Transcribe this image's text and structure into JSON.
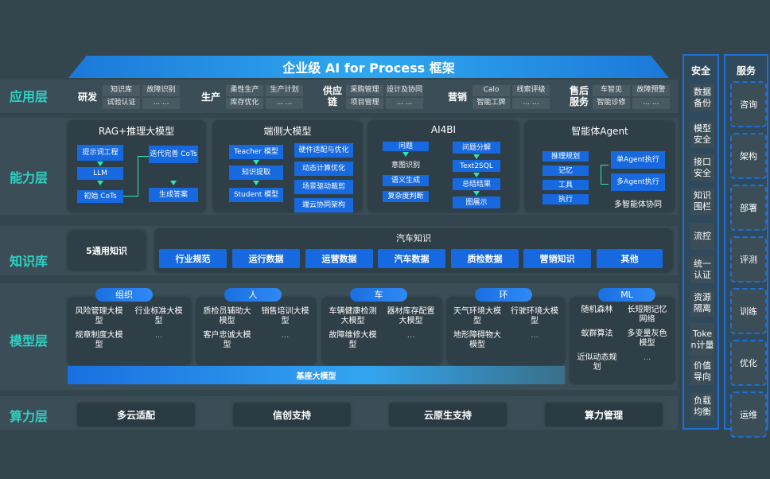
{
  "title": "企业级 AI for Process 框架",
  "layers": {
    "app": "应用层",
    "capability": "能力层",
    "knowledge": "知识库",
    "model": "模型层",
    "compute": "算力层"
  },
  "app_groups": [
    {
      "name": "研发",
      "items": [
        "知识库",
        "故障识别",
        "试验认证",
        "... ..."
      ]
    },
    {
      "name": "生产",
      "items": [
        "柔性生产",
        "生产计划",
        "库存优化",
        "... ..."
      ]
    },
    {
      "name": "供应链",
      "items": [
        "采购管理",
        "设计及协同",
        "项目管理",
        "... ..."
      ]
    },
    {
      "name": "营销",
      "items": [
        "Calo",
        "线索评级",
        "智能工牌",
        "... ..."
      ]
    },
    {
      "name": "售后服务",
      "items": [
        "车智见",
        "故障预警",
        "智能诊修",
        "... ..."
      ]
    }
  ],
  "capability": {
    "rag": {
      "title": "RAG+推理大模型",
      "prompt": "提示词工程",
      "llm": "LLM",
      "init": "初始 CoTs",
      "iter": "迭代完善 CoTs",
      "answer": "生成答案"
    },
    "edge": {
      "title": "端侧大模型",
      "teacher": "Teacher 模型",
      "extract": "知识提取",
      "student": "Student 模型",
      "right": [
        "硬件适配与优化",
        "动态计算优化",
        "场景驱动裁剪",
        "端云协同架构"
      ]
    },
    "ai4bi": {
      "title": "AI4BI",
      "question": "问题",
      "intent": "意图识别",
      "semantic": "语义生成",
      "complexity": "复杂度判断",
      "decompose": "问题分解",
      "text2sql": "Text2SQL",
      "summary": "总结结果",
      "display": "图展示"
    },
    "agent": {
      "title": "智能体Agent",
      "left": [
        "推理规划",
        "记忆",
        "工具",
        "执行"
      ],
      "single": "单Agent执行",
      "multi": "多Agent执行",
      "collab": "多智能体协同"
    }
  },
  "knowledge": {
    "general": "5通用知识",
    "auto_title": "汽车知识",
    "items": [
      "行业规范",
      "运行数据",
      "运营数据",
      "汽车数据",
      "质检数据",
      "营销知识",
      "其他"
    ]
  },
  "models": [
    {
      "tag": "组织",
      "items": [
        "风险管理大模型",
        "行业标准大模型",
        "规章制度大模型",
        "..."
      ]
    },
    {
      "tag": "人",
      "items": [
        "质检员辅助大模型",
        "销售培训大模型",
        "客户忠诚大模型",
        "..."
      ]
    },
    {
      "tag": "车",
      "items": [
        "车辆健康检测大模型",
        "器材库存配置大模型",
        "故障维修大模型",
        "..."
      ]
    },
    {
      "tag": "环",
      "items": [
        "天气环境大模型",
        "行驶环境大模型",
        "地形障碍物大模型",
        "..."
      ]
    },
    {
      "tag": "ML",
      "items": [
        "随机森林",
        "长短期记忆网络",
        "蚁群算法",
        "多变量灰色模型",
        "近似动态规划",
        "..."
      ]
    }
  ],
  "base_model": "基座大模型",
  "compute": [
    "多云适配",
    "信创支持",
    "云原生支持",
    "算力管理"
  ],
  "security": {
    "title": "安全",
    "items": [
      "数据备份",
      "模型安全",
      "接口安全",
      "知识围栏",
      "流控",
      "统一认证",
      "资源隔离",
      "Token计量",
      "价值导向",
      "负载均衡"
    ]
  },
  "service": {
    "title": "服务",
    "items": [
      "咨询",
      "架构",
      "部署",
      "评测",
      "训练",
      "优化",
      "运维"
    ]
  },
  "colors": {
    "accent_blue": "#1769e0",
    "layer_label": "#2ed1c4",
    "arrow": "#2ee6b8",
    "background": "#33464e"
  }
}
